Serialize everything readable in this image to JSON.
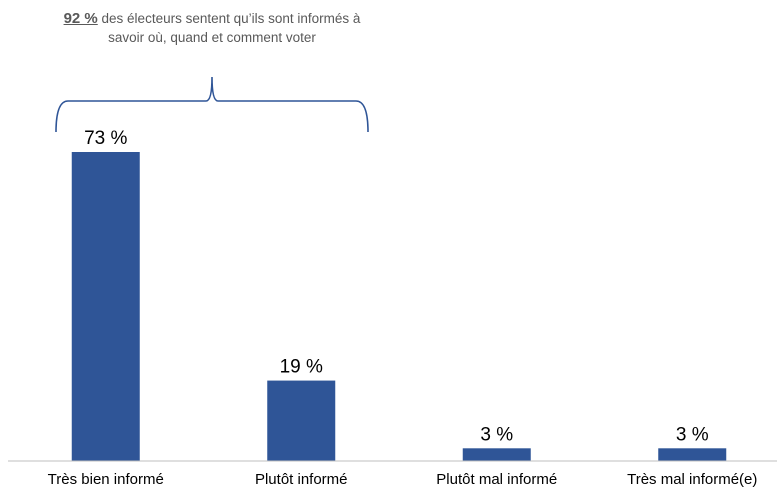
{
  "chart_data": {
    "type": "bar",
    "categories": [
      "Très bien informé",
      "Plutôt informé",
      "Plutôt mal informé",
      "Très mal informé(e)"
    ],
    "values": [
      73,
      19,
      3,
      3
    ],
    "data_labels": [
      "73 %",
      "19 %",
      "3 %",
      "3 %"
    ],
    "bar_color": "#2F5597",
    "ylim": [
      0,
      80
    ],
    "grid": false,
    "legend": "none",
    "annotation": {
      "highlight": "92 %",
      "text": "des électeurs sentent qu’ils sont informés à savoir où, quand et comment voter",
      "brace_color": "#2F5597"
    }
  }
}
